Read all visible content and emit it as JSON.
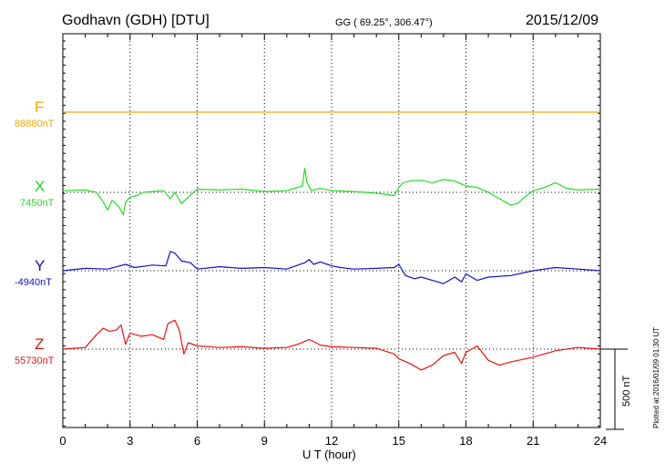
{
  "header": {
    "station": "Godhavn (GDH)  [DTU]",
    "coords": "GG ( 69.25°, 306.47°)",
    "date": "2015/12/09"
  },
  "footer_note": "Plotted at 2016/01/09 01:30 UT",
  "scale_label": "500 nT",
  "chart_data": {
    "type": "line",
    "title": "Godhavn (GDH)  [DTU]",
    "xlabel": "U T (hour)",
    "xlim": [
      0,
      24
    ],
    "x_ticks": [
      "0",
      "3",
      "6",
      "9",
      "12",
      "15",
      "18",
      "21",
      "24"
    ],
    "grid": true,
    "scale_bar_nT": 500,
    "series": [
      {
        "name": "F",
        "baseline_label": "88880nT",
        "color": "#f0a800",
        "x": [
          0,
          24
        ],
        "y": [
          0,
          0
        ]
      },
      {
        "name": "X",
        "baseline_label": "7450nT",
        "color": "#22dd22",
        "x": [
          0,
          1.0,
          1.5,
          1.8,
          2.0,
          2.2,
          2.5,
          2.7,
          2.8,
          3.0,
          3.3,
          3.6,
          4.0,
          4.5,
          4.8,
          5.0,
          5.3,
          5.6,
          6.0,
          7.0,
          8.0,
          9.0,
          10.0,
          10.7,
          10.8,
          10.9,
          11.1,
          11.5,
          12.0,
          13.0,
          14.0,
          14.8,
          15.0,
          15.2,
          15.5,
          16.0,
          16.5,
          17.0,
          17.5,
          18.0,
          18.5,
          19.0,
          19.5,
          20.0,
          20.3,
          20.7,
          21.0,
          21.5,
          22.0,
          22.5,
          23.0,
          24.0
        ],
        "y": [
          10,
          15,
          0,
          -60,
          -110,
          -50,
          -90,
          -140,
          -60,
          -30,
          -20,
          0,
          5,
          10,
          -40,
          0,
          -70,
          -30,
          20,
          15,
          20,
          5,
          10,
          40,
          150,
          60,
          10,
          25,
          10,
          5,
          -5,
          -20,
          30,
          60,
          70,
          75,
          60,
          80,
          70,
          40,
          30,
          0,
          -40,
          -80,
          -70,
          -20,
          10,
          30,
          60,
          25,
          15,
          20
        ]
      },
      {
        "name": "Y",
        "baseline_label": "-4940nT",
        "color": "#1010cc",
        "x": [
          0,
          1.0,
          2.0,
          2.8,
          3.2,
          4.0,
          4.6,
          4.8,
          5.0,
          5.3,
          5.7,
          6.0,
          7.0,
          8.0,
          9.0,
          10.0,
          10.8,
          11.0,
          11.2,
          11.5,
          12.0,
          12.4,
          13.0,
          14.0,
          14.8,
          15.0,
          15.3,
          15.7,
          16.0,
          16.5,
          17.0,
          17.5,
          17.8,
          18.0,
          18.5,
          19.0,
          20.0,
          21.0,
          22.0,
          23.0,
          24.0
        ],
        "y": [
          0,
          15,
          10,
          40,
          20,
          35,
          30,
          120,
          110,
          60,
          50,
          10,
          25,
          15,
          20,
          10,
          50,
          70,
          40,
          55,
          30,
          20,
          10,
          15,
          20,
          40,
          -30,
          -50,
          -40,
          -60,
          -80,
          -40,
          -70,
          -20,
          -60,
          -40,
          -30,
          0,
          20,
          10,
          0
        ]
      },
      {
        "name": "Z",
        "baseline_label": "55730nT",
        "color": "#ee1111",
        "x": [
          0,
          1.0,
          1.5,
          1.8,
          2.1,
          2.4,
          2.6,
          2.8,
          3.0,
          3.5,
          4.0,
          4.5,
          4.7,
          5.0,
          5.2,
          5.4,
          5.6,
          6.0,
          7.0,
          8.0,
          9.0,
          10.0,
          10.5,
          11.0,
          11.5,
          12.0,
          13.0,
          14.0,
          14.8,
          15.0,
          15.5,
          16.0,
          16.5,
          17.0,
          17.5,
          17.8,
          18.0,
          18.5,
          19.0,
          19.5,
          20.0,
          21.0,
          22.0,
          23.0,
          24.0
        ],
        "y": [
          0,
          10,
          90,
          130,
          110,
          120,
          150,
          30,
          100,
          80,
          90,
          60,
          160,
          180,
          120,
          -30,
          40,
          20,
          10,
          15,
          5,
          10,
          30,
          60,
          25,
          15,
          10,
          5,
          -30,
          -60,
          -90,
          -130,
          -100,
          -40,
          -20,
          -90,
          -20,
          20,
          -70,
          -100,
          -80,
          -50,
          -10,
          10,
          0
        ]
      }
    ]
  }
}
